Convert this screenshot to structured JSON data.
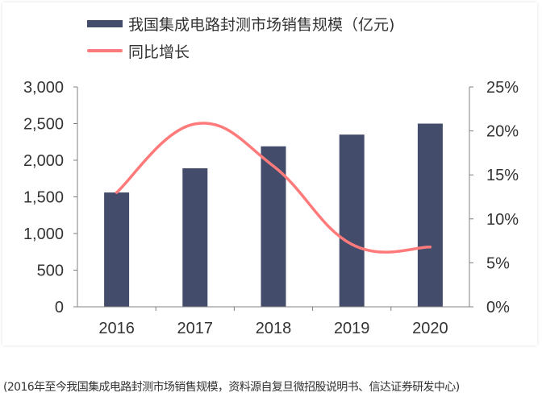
{
  "legend": {
    "bar_label": "我国集成电路封测市场销售规模（亿元)",
    "line_label": "同比增长"
  },
  "caption": "(2016年至今我国集成电路封测市场销售规模，资料源自复旦微招股说明书、信达证券研发中心)",
  "colors": {
    "bar": "#434c6a",
    "line": "#ff7b7b",
    "axis": "#808080",
    "text": "#333333"
  },
  "chart_data": {
    "type": "bar",
    "title": "",
    "categories": [
      "2016",
      "2017",
      "2018",
      "2019",
      "2020"
    ],
    "series": [
      {
        "name": "我国集成电路封测市场销售规模（亿元)",
        "type": "bar",
        "axis": "left",
        "values": [
          1560,
          1890,
          2190,
          2350,
          2500
        ]
      },
      {
        "name": "同比增长",
        "type": "line",
        "axis": "right",
        "values": [
          13.0,
          20.8,
          16.0,
          7.1,
          6.8
        ],
        "unit": "%"
      }
    ],
    "y_left": {
      "ylim": [
        0,
        3000
      ],
      "ticks": [
        "0",
        "500",
        "1,000",
        "1,500",
        "2,000",
        "2,500",
        "3,000"
      ]
    },
    "y_right": {
      "ylim": [
        0,
        25
      ],
      "ticks": [
        "0%",
        "5%",
        "10%",
        "15%",
        "20%",
        "25%"
      ]
    },
    "xlabel": "",
    "ylabel": "",
    "grid": false,
    "legend_position": "top"
  }
}
